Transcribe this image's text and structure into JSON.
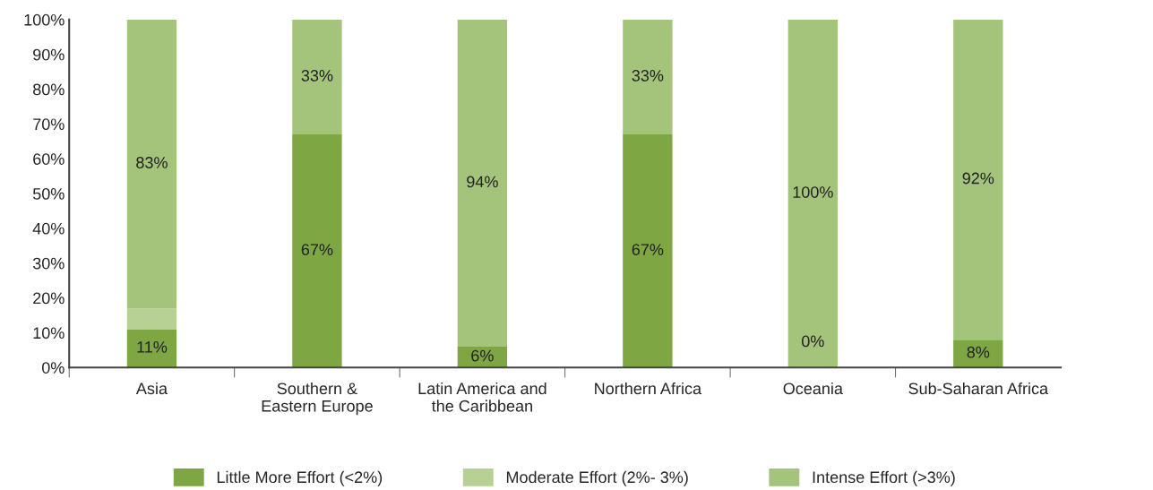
{
  "chart_data": {
    "type": "bar",
    "stacked": true,
    "categories": [
      "Asia",
      "Southern &\nEastern Europe",
      "Latin America and\nthe Caribbean",
      "Northern Africa",
      "Oceania",
      "Sub-Saharan Africa"
    ],
    "series": [
      {
        "name": "Little More Effort (<2%)",
        "color": "#7ea643",
        "values": [
          11,
          67,
          6,
          67,
          0,
          8
        ],
        "value_labels": [
          "11%",
          "67%",
          "6%",
          "67%",
          null,
          "8%"
        ]
      },
      {
        "name": "Moderate Effort (2%- 3%)",
        "color": "#b7d093",
        "values": [
          6,
          0,
          0,
          0,
          0,
          0
        ],
        "value_labels": [
          null,
          null,
          null,
          null,
          null,
          null
        ]
      },
      {
        "name": "Intense Effort (>3%)",
        "color": "#a4c37b",
        "values": [
          83,
          33,
          94,
          33,
          100,
          92
        ],
        "value_labels": [
          "83%",
          "33%",
          "94%",
          "33%",
          "100%",
          "92%"
        ]
      }
    ],
    "ylim": [
      0,
      100
    ],
    "yticks": [
      {
        "value": 0,
        "label": "0%"
      },
      {
        "value": 10,
        "label": "10%"
      },
      {
        "value": 20,
        "label": "20%"
      },
      {
        "value": 30,
        "label": "30%"
      },
      {
        "value": 40,
        "label": "40%"
      },
      {
        "value": 50,
        "label": "50%"
      },
      {
        "value": 60,
        "label": "60%"
      },
      {
        "value": 70,
        "label": "70%"
      },
      {
        "value": 80,
        "label": "80%"
      },
      {
        "value": 90,
        "label": "90%"
      },
      {
        "value": 100,
        "label": "100%"
      }
    ],
    "annotations": [
      {
        "text": "0%",
        "x": "Oceania",
        "y": 0
      }
    ],
    "legend": "bottom",
    "grid": false
  }
}
